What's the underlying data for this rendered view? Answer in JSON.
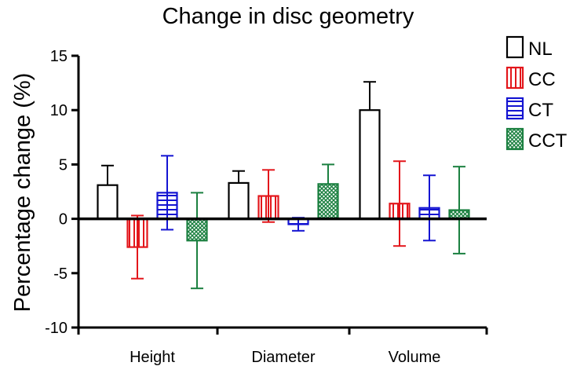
{
  "chart_data": {
    "type": "bar",
    "title": "Change in disc geometry",
    "xlabel": "",
    "ylabel": "Percentage change (%)",
    "ylim": [
      -10,
      15
    ],
    "yticks": [
      15,
      10,
      5,
      0,
      -5,
      -10
    ],
    "categories": [
      "Height",
      "Diameter",
      "Volume"
    ],
    "legend_position": "top-right",
    "grid": false,
    "error_bars": "mean ± error",
    "series": [
      {
        "name": "NL",
        "color": "#000000",
        "pattern": "none",
        "values": [
          3.1,
          3.3,
          10.0
        ],
        "errors": [
          1.8,
          1.1,
          2.6
        ]
      },
      {
        "name": "CC",
        "color": "#e3161b",
        "pattern": "vertical-lines",
        "values": [
          -2.6,
          2.1,
          1.4
        ],
        "errors": [
          2.9,
          2.4,
          3.9
        ]
      },
      {
        "name": "CT",
        "color": "#1414d2",
        "pattern": "horizontal-lines",
        "values": [
          2.4,
          -0.5,
          1.0
        ],
        "errors": [
          3.4,
          0.6,
          3.0
        ]
      },
      {
        "name": "CCT",
        "color": "#1b8040",
        "pattern": "crosshatch",
        "values": [
          -2.0,
          3.2,
          0.8
        ],
        "errors": [
          4.4,
          1.8,
          4.0
        ]
      }
    ]
  }
}
